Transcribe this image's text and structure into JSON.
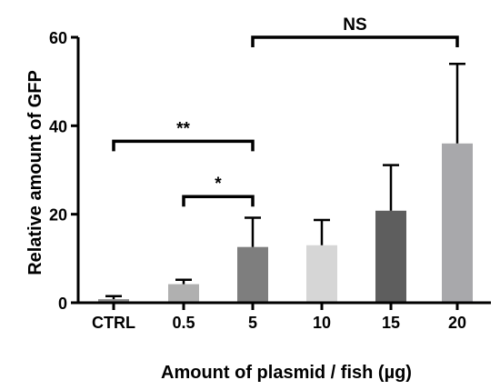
{
  "chart_data": {
    "type": "bar",
    "title": "",
    "xlabel": "Amount of plasmid / fish (µg)",
    "ylabel": "Relative amount of GFP",
    "ylim": [
      0,
      60
    ],
    "yticks": [
      "0",
      "20",
      "40",
      "60"
    ],
    "categories": [
      "CTRL",
      "0.5",
      "5",
      "10",
      "15",
      "20"
    ],
    "values": [
      0.8,
      4.2,
      12.6,
      13.0,
      20.8,
      36.0
    ],
    "errors": [
      0.7,
      1.0,
      6.6,
      5.7,
      10.3,
      18.0
    ],
    "bar_colors": [
      "#8a8a8a",
      "#b0b0b0",
      "#7e7e7e",
      "#d6d6d6",
      "#5e5e5e",
      "#a8a8ab"
    ],
    "significance": [
      {
        "from": "0.5",
        "to": "5",
        "label": "*",
        "y": 24
      },
      {
        "from": "CTRL",
        "to": "5",
        "label": "**",
        "y": 36.5
      },
      {
        "from": "5",
        "to": "20",
        "label": "NS",
        "y": 60
      }
    ]
  }
}
